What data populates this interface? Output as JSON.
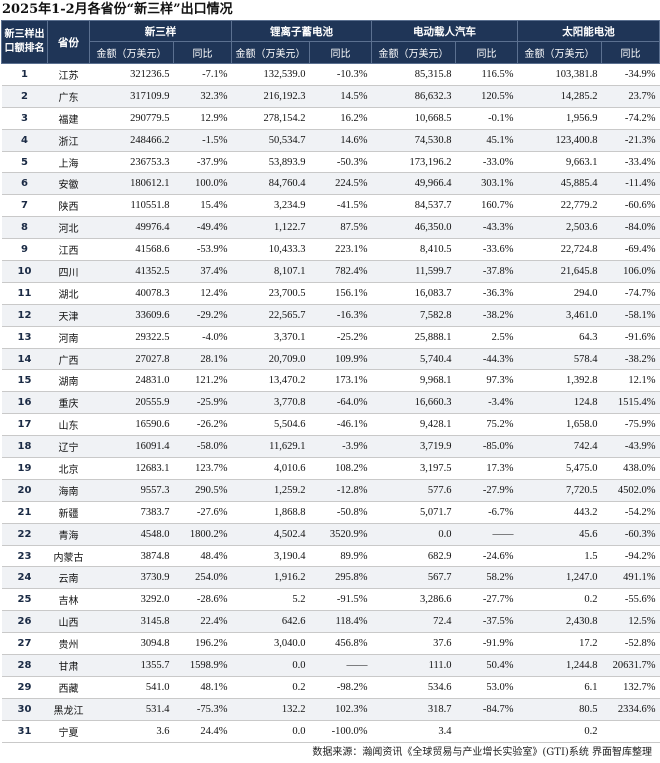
{
  "title": "2025年1-2月各省份“新三样”出口情况",
  "header": {
    "rank_label": "新三样出口额排名",
    "province_label": "省份",
    "groups": [
      "新三样",
      "锂离子蓄电池",
      "电动载人汽车",
      "太阳能电池"
    ],
    "amount_label": "金额（万美元）",
    "yoy_label": "同比"
  },
  "rows": [
    {
      "rank": "1",
      "province": "江苏",
      "a": "321236.5",
      "ay": "-7.1%",
      "b": "132,539.0",
      "by": "-10.3%",
      "c": "85,315.8",
      "cy": "116.5%",
      "d": "103,381.8",
      "dy": "-34.9%"
    },
    {
      "rank": "2",
      "province": "广东",
      "a": "317109.9",
      "ay": "32.3%",
      "b": "216,192.3",
      "by": "14.5%",
      "c": "86,632.3",
      "cy": "120.5%",
      "d": "14,285.2",
      "dy": "23.7%"
    },
    {
      "rank": "3",
      "province": "福建",
      "a": "290779.5",
      "ay": "12.9%",
      "b": "278,154.2",
      "by": "16.2%",
      "c": "10,668.5",
      "cy": "-0.1%",
      "d": "1,956.9",
      "dy": "-74.2%"
    },
    {
      "rank": "4",
      "province": "浙江",
      "a": "248466.2",
      "ay": "-1.5%",
      "b": "50,534.7",
      "by": "14.6%",
      "c": "74,530.8",
      "cy": "45.1%",
      "d": "123,400.8",
      "dy": "-21.3%"
    },
    {
      "rank": "5",
      "province": "上海",
      "a": "236753.3",
      "ay": "-37.9%",
      "b": "53,893.9",
      "by": "-50.3%",
      "c": "173,196.2",
      "cy": "-33.0%",
      "d": "9,663.1",
      "dy": "-33.4%"
    },
    {
      "rank": "6",
      "province": "安徽",
      "a": "180612.1",
      "ay": "100.0%",
      "b": "84,760.4",
      "by": "224.5%",
      "c": "49,966.4",
      "cy": "303.1%",
      "d": "45,885.4",
      "dy": "-11.4%"
    },
    {
      "rank": "7",
      "province": "陕西",
      "a": "110551.8",
      "ay": "15.4%",
      "b": "3,234.9",
      "by": "-41.5%",
      "c": "84,537.7",
      "cy": "160.7%",
      "d": "22,779.2",
      "dy": "-60.6%"
    },
    {
      "rank": "8",
      "province": "河北",
      "a": "49976.4",
      "ay": "-49.4%",
      "b": "1,122.7",
      "by": "87.5%",
      "c": "46,350.0",
      "cy": "-43.3%",
      "d": "2,503.6",
      "dy": "-84.0%"
    },
    {
      "rank": "9",
      "province": "江西",
      "a": "41568.6",
      "ay": "-53.9%",
      "b": "10,433.3",
      "by": "223.1%",
      "c": "8,410.5",
      "cy": "-33.6%",
      "d": "22,724.8",
      "dy": "-69.4%"
    },
    {
      "rank": "10",
      "province": "四川",
      "a": "41352.5",
      "ay": "37.4%",
      "b": "8,107.1",
      "by": "782.4%",
      "c": "11,599.7",
      "cy": "-37.8%",
      "d": "21,645.8",
      "dy": "106.0%"
    },
    {
      "rank": "11",
      "province": "湖北",
      "a": "40078.3",
      "ay": "12.4%",
      "b": "23,700.5",
      "by": "156.1%",
      "c": "16,083.7",
      "cy": "-36.3%",
      "d": "294.0",
      "dy": "-74.7%"
    },
    {
      "rank": "12",
      "province": "天津",
      "a": "33609.6",
      "ay": "-29.2%",
      "b": "22,565.7",
      "by": "-16.3%",
      "c": "7,582.8",
      "cy": "-38.2%",
      "d": "3,461.0",
      "dy": "-58.1%"
    },
    {
      "rank": "13",
      "province": "河南",
      "a": "29322.5",
      "ay": "-4.0%",
      "b": "3,370.1",
      "by": "-25.2%",
      "c": "25,888.1",
      "cy": "2.5%",
      "d": "64.3",
      "dy": "-91.6%"
    },
    {
      "rank": "14",
      "province": "广西",
      "a": "27027.8",
      "ay": "28.1%",
      "b": "20,709.0",
      "by": "109.9%",
      "c": "5,740.4",
      "cy": "-44.3%",
      "d": "578.4",
      "dy": "-38.2%"
    },
    {
      "rank": "15",
      "province": "湖南",
      "a": "24831.0",
      "ay": "121.2%",
      "b": "13,470.2",
      "by": "173.1%",
      "c": "9,968.1",
      "cy": "97.3%",
      "d": "1,392.8",
      "dy": "12.1%"
    },
    {
      "rank": "16",
      "province": "重庆",
      "a": "20555.9",
      "ay": "-25.9%",
      "b": "3,770.8",
      "by": "-64.0%",
      "c": "16,660.3",
      "cy": "-3.4%",
      "d": "124.8",
      "dy": "1515.4%"
    },
    {
      "rank": "17",
      "province": "山东",
      "a": "16590.6",
      "ay": "-26.2%",
      "b": "5,504.6",
      "by": "-46.1%",
      "c": "9,428.1",
      "cy": "75.2%",
      "d": "1,658.0",
      "dy": "-75.9%"
    },
    {
      "rank": "18",
      "province": "辽宁",
      "a": "16091.4",
      "ay": "-58.0%",
      "b": "11,629.1",
      "by": "-3.9%",
      "c": "3,719.9",
      "cy": "-85.0%",
      "d": "742.4",
      "dy": "-43.9%"
    },
    {
      "rank": "19",
      "province": "北京",
      "a": "12683.1",
      "ay": "123.7%",
      "b": "4,010.6",
      "by": "108.2%",
      "c": "3,197.5",
      "cy": "17.3%",
      "d": "5,475.0",
      "dy": "438.0%"
    },
    {
      "rank": "20",
      "province": "海南",
      "a": "9557.3",
      "ay": "290.5%",
      "b": "1,259.2",
      "by": "-12.8%",
      "c": "577.6",
      "cy": "-27.9%",
      "d": "7,720.5",
      "dy": "4502.0%"
    },
    {
      "rank": "21",
      "province": "新疆",
      "a": "7383.7",
      "ay": "-27.6%",
      "b": "1,868.8",
      "by": "-50.8%",
      "c": "5,071.7",
      "cy": "-6.7%",
      "d": "443.2",
      "dy": "-54.2%"
    },
    {
      "rank": "22",
      "province": "青海",
      "a": "4548.0",
      "ay": "1800.2%",
      "b": "4,502.4",
      "by": "3520.9%",
      "c": "0.0",
      "cy": "——",
      "d": "45.6",
      "dy": "-60.3%"
    },
    {
      "rank": "23",
      "province": "内蒙古",
      "a": "3874.8",
      "ay": "48.4%",
      "b": "3,190.4",
      "by": "89.9%",
      "c": "682.9",
      "cy": "-24.6%",
      "d": "1.5",
      "dy": "-94.2%"
    },
    {
      "rank": "24",
      "province": "云南",
      "a": "3730.9",
      "ay": "254.0%",
      "b": "1,916.2",
      "by": "295.8%",
      "c": "567.7",
      "cy": "58.2%",
      "d": "1,247.0",
      "dy": "491.1%"
    },
    {
      "rank": "25",
      "province": "吉林",
      "a": "3292.0",
      "ay": "-28.6%",
      "b": "5.2",
      "by": "-91.5%",
      "c": "3,286.6",
      "cy": "-27.7%",
      "d": "0.2",
      "dy": "-55.6%"
    },
    {
      "rank": "26",
      "province": "山西",
      "a": "3145.8",
      "ay": "22.4%",
      "b": "642.6",
      "by": "118.4%",
      "c": "72.4",
      "cy": "-37.5%",
      "d": "2,430.8",
      "dy": "12.5%"
    },
    {
      "rank": "27",
      "province": "贵州",
      "a": "3094.8",
      "ay": "196.2%",
      "b": "3,040.0",
      "by": "456.8%",
      "c": "37.6",
      "cy": "-91.9%",
      "d": "17.2",
      "dy": "-52.8%"
    },
    {
      "rank": "28",
      "province": "甘肃",
      "a": "1355.7",
      "ay": "1598.9%",
      "b": "0.0",
      "by": "——",
      "c": "111.0",
      "cy": "50.4%",
      "d": "1,244.8",
      "dy": "20631.7%"
    },
    {
      "rank": "29",
      "province": "西藏",
      "a": "541.0",
      "ay": "48.1%",
      "b": "0.2",
      "by": "-98.2%",
      "c": "534.6",
      "cy": "53.0%",
      "d": "6.1",
      "dy": "132.7%"
    },
    {
      "rank": "30",
      "province": "黑龙江",
      "a": "531.4",
      "ay": "-75.3%",
      "b": "132.2",
      "by": "102.3%",
      "c": "318.7",
      "cy": "-84.7%",
      "d": "80.5",
      "dy": "2334.6%"
    },
    {
      "rank": "31",
      "province": "宁夏",
      "a": "3.6",
      "ay": "24.4%",
      "b": "0.0",
      "by": "-100.0%",
      "c": "3.4",
      "cy": "",
      "d": "0.2",
      "dy": ""
    }
  ],
  "source": "数据来源：瀚闻资讯《全球贸易与产业增长实验室》(GTI)系统  界面智库整理"
}
